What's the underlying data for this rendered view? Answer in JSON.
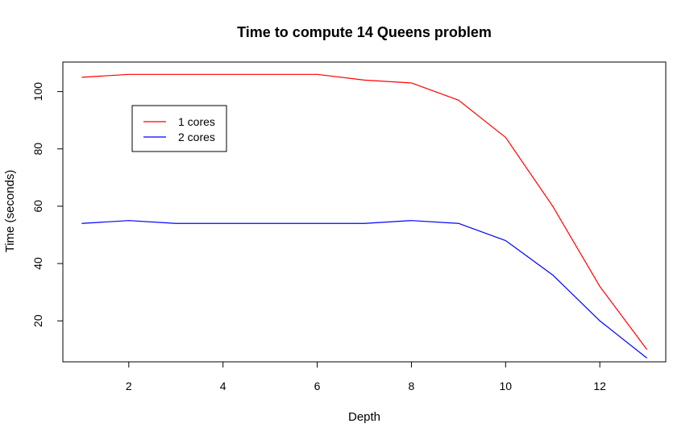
{
  "chart_data": {
    "type": "line",
    "title": "Time to compute 14 Queens problem",
    "xlabel": "Depth",
    "ylabel": "Time (seconds)",
    "x": [
      1,
      2,
      3,
      4,
      5,
      6,
      7,
      8,
      9,
      10,
      11,
      12,
      13
    ],
    "xlim": [
      0.6,
      13.4
    ],
    "ylim": [
      5.7,
      110.3
    ],
    "x_ticks": [
      2,
      4,
      6,
      8,
      10,
      12
    ],
    "y_ticks": [
      20,
      40,
      60,
      80,
      100
    ],
    "grid": false,
    "legend_position": "top-left",
    "series": [
      {
        "name": "1 cores",
        "color": "#ff0000",
        "values": [
          105,
          106,
          106,
          106,
          106,
          106,
          104,
          103,
          97,
          84,
          60,
          32,
          10
        ]
      },
      {
        "name": "2 cores",
        "color": "#0000ff",
        "values": [
          54,
          55,
          54,
          54,
          54,
          54,
          54,
          55,
          54,
          48,
          36,
          20,
          7
        ]
      }
    ]
  }
}
